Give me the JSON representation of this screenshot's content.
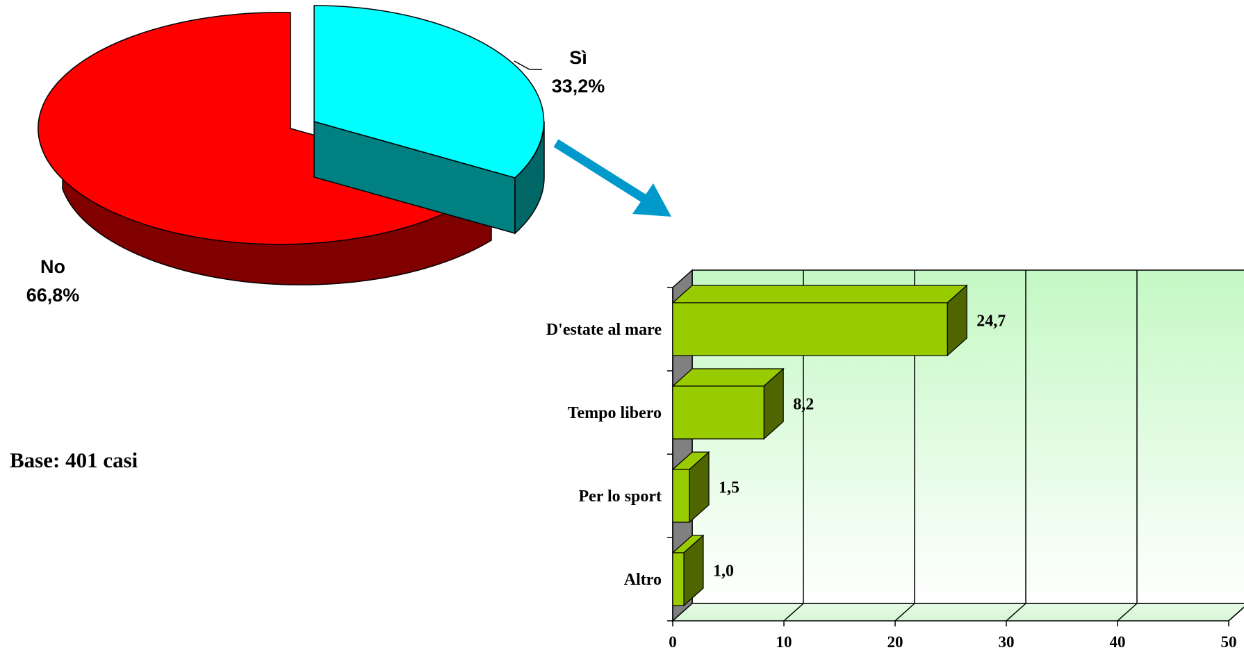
{
  "chart_data": [
    {
      "type": "pie",
      "style": "3d-exploded",
      "slices": [
        {
          "label": "Sì",
          "value": 33.2,
          "value_label": "33,2%",
          "color": "#00FFFF",
          "side_color": "#008080"
        },
        {
          "label": "No",
          "value": 66.8,
          "value_label": "66,8%",
          "color": "#FF0000",
          "side_color": "#800000"
        }
      ],
      "note": "Base: 401 casi"
    },
    {
      "type": "bar",
      "orientation": "horizontal",
      "style": "3d",
      "categories": [
        "D'estate al mare",
        "Tempo libero",
        "Per lo sport",
        "Altro"
      ],
      "values": [
        24.7,
        8.2,
        1.5,
        1.0
      ],
      "value_labels": [
        "24,7",
        "8,2",
        "1,5",
        "1,0"
      ],
      "xlim": [
        0,
        50
      ],
      "xticks": [
        "0",
        "10",
        "20",
        "30",
        "40",
        "50"
      ],
      "grid": true,
      "bar_color": "#99CC00",
      "bar_side_color": "#4F6600",
      "plot_background": "#CCFFCC"
    }
  ],
  "connector": {
    "color": "#0099CC",
    "icon": "arrow-right-down-icon"
  }
}
